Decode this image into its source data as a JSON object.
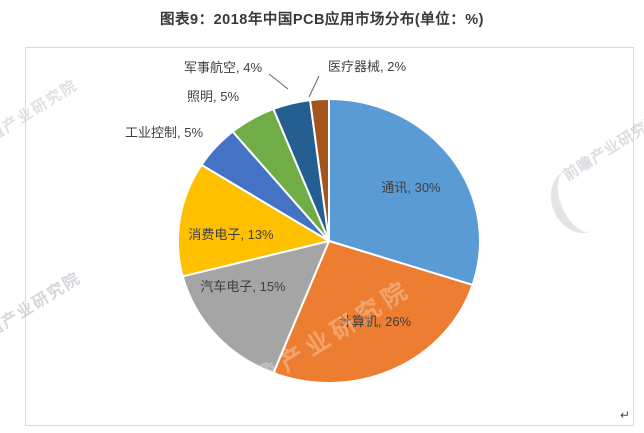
{
  "title": "图表9：2018年中国PCB应用市场分布(单位：%)",
  "watermark": {
    "brand_text": "前瞻产业研究院",
    "corner_mark": "↵"
  },
  "chart_data": {
    "type": "pie",
    "title": "图表9：2018年中国PCB应用市场分布(单位：%)",
    "unit": "%",
    "start_angle_deg": 0,
    "direction": "clockwise",
    "legend": "none",
    "label_format": "{label}, {value}%",
    "slice_border_color": "#ffffff",
    "label_color": "#3f3f3f",
    "slices": [
      {
        "label": "通讯",
        "value": 30,
        "color": "#5B9BD5",
        "label_placement": "inside",
        "leader_line": false
      },
      {
        "label": "计算机",
        "value": 26,
        "color": "#ED7D31",
        "label_placement": "inside",
        "leader_line": false
      },
      {
        "label": "汽车电子",
        "value": 15,
        "color": "#A5A5A5",
        "label_placement": "inside",
        "leader_line": false
      },
      {
        "label": "消费电子",
        "value": 13,
        "color": "#FFC000",
        "label_placement": "inside",
        "leader_line": false
      },
      {
        "label": "工业控制",
        "value": 5,
        "color": "#4472C4",
        "label_placement": "outside",
        "leader_line": false
      },
      {
        "label": "照明",
        "value": 5,
        "color": "#70AD47",
        "label_placement": "outside",
        "leader_line": false
      },
      {
        "label": "军事航空",
        "value": 4,
        "color": "#255E91",
        "label_placement": "outside",
        "leader_line": true
      },
      {
        "label": "医疗器械",
        "value": 2,
        "color": "#A4551E",
        "label_placement": "outside",
        "leader_line": true
      }
    ]
  }
}
